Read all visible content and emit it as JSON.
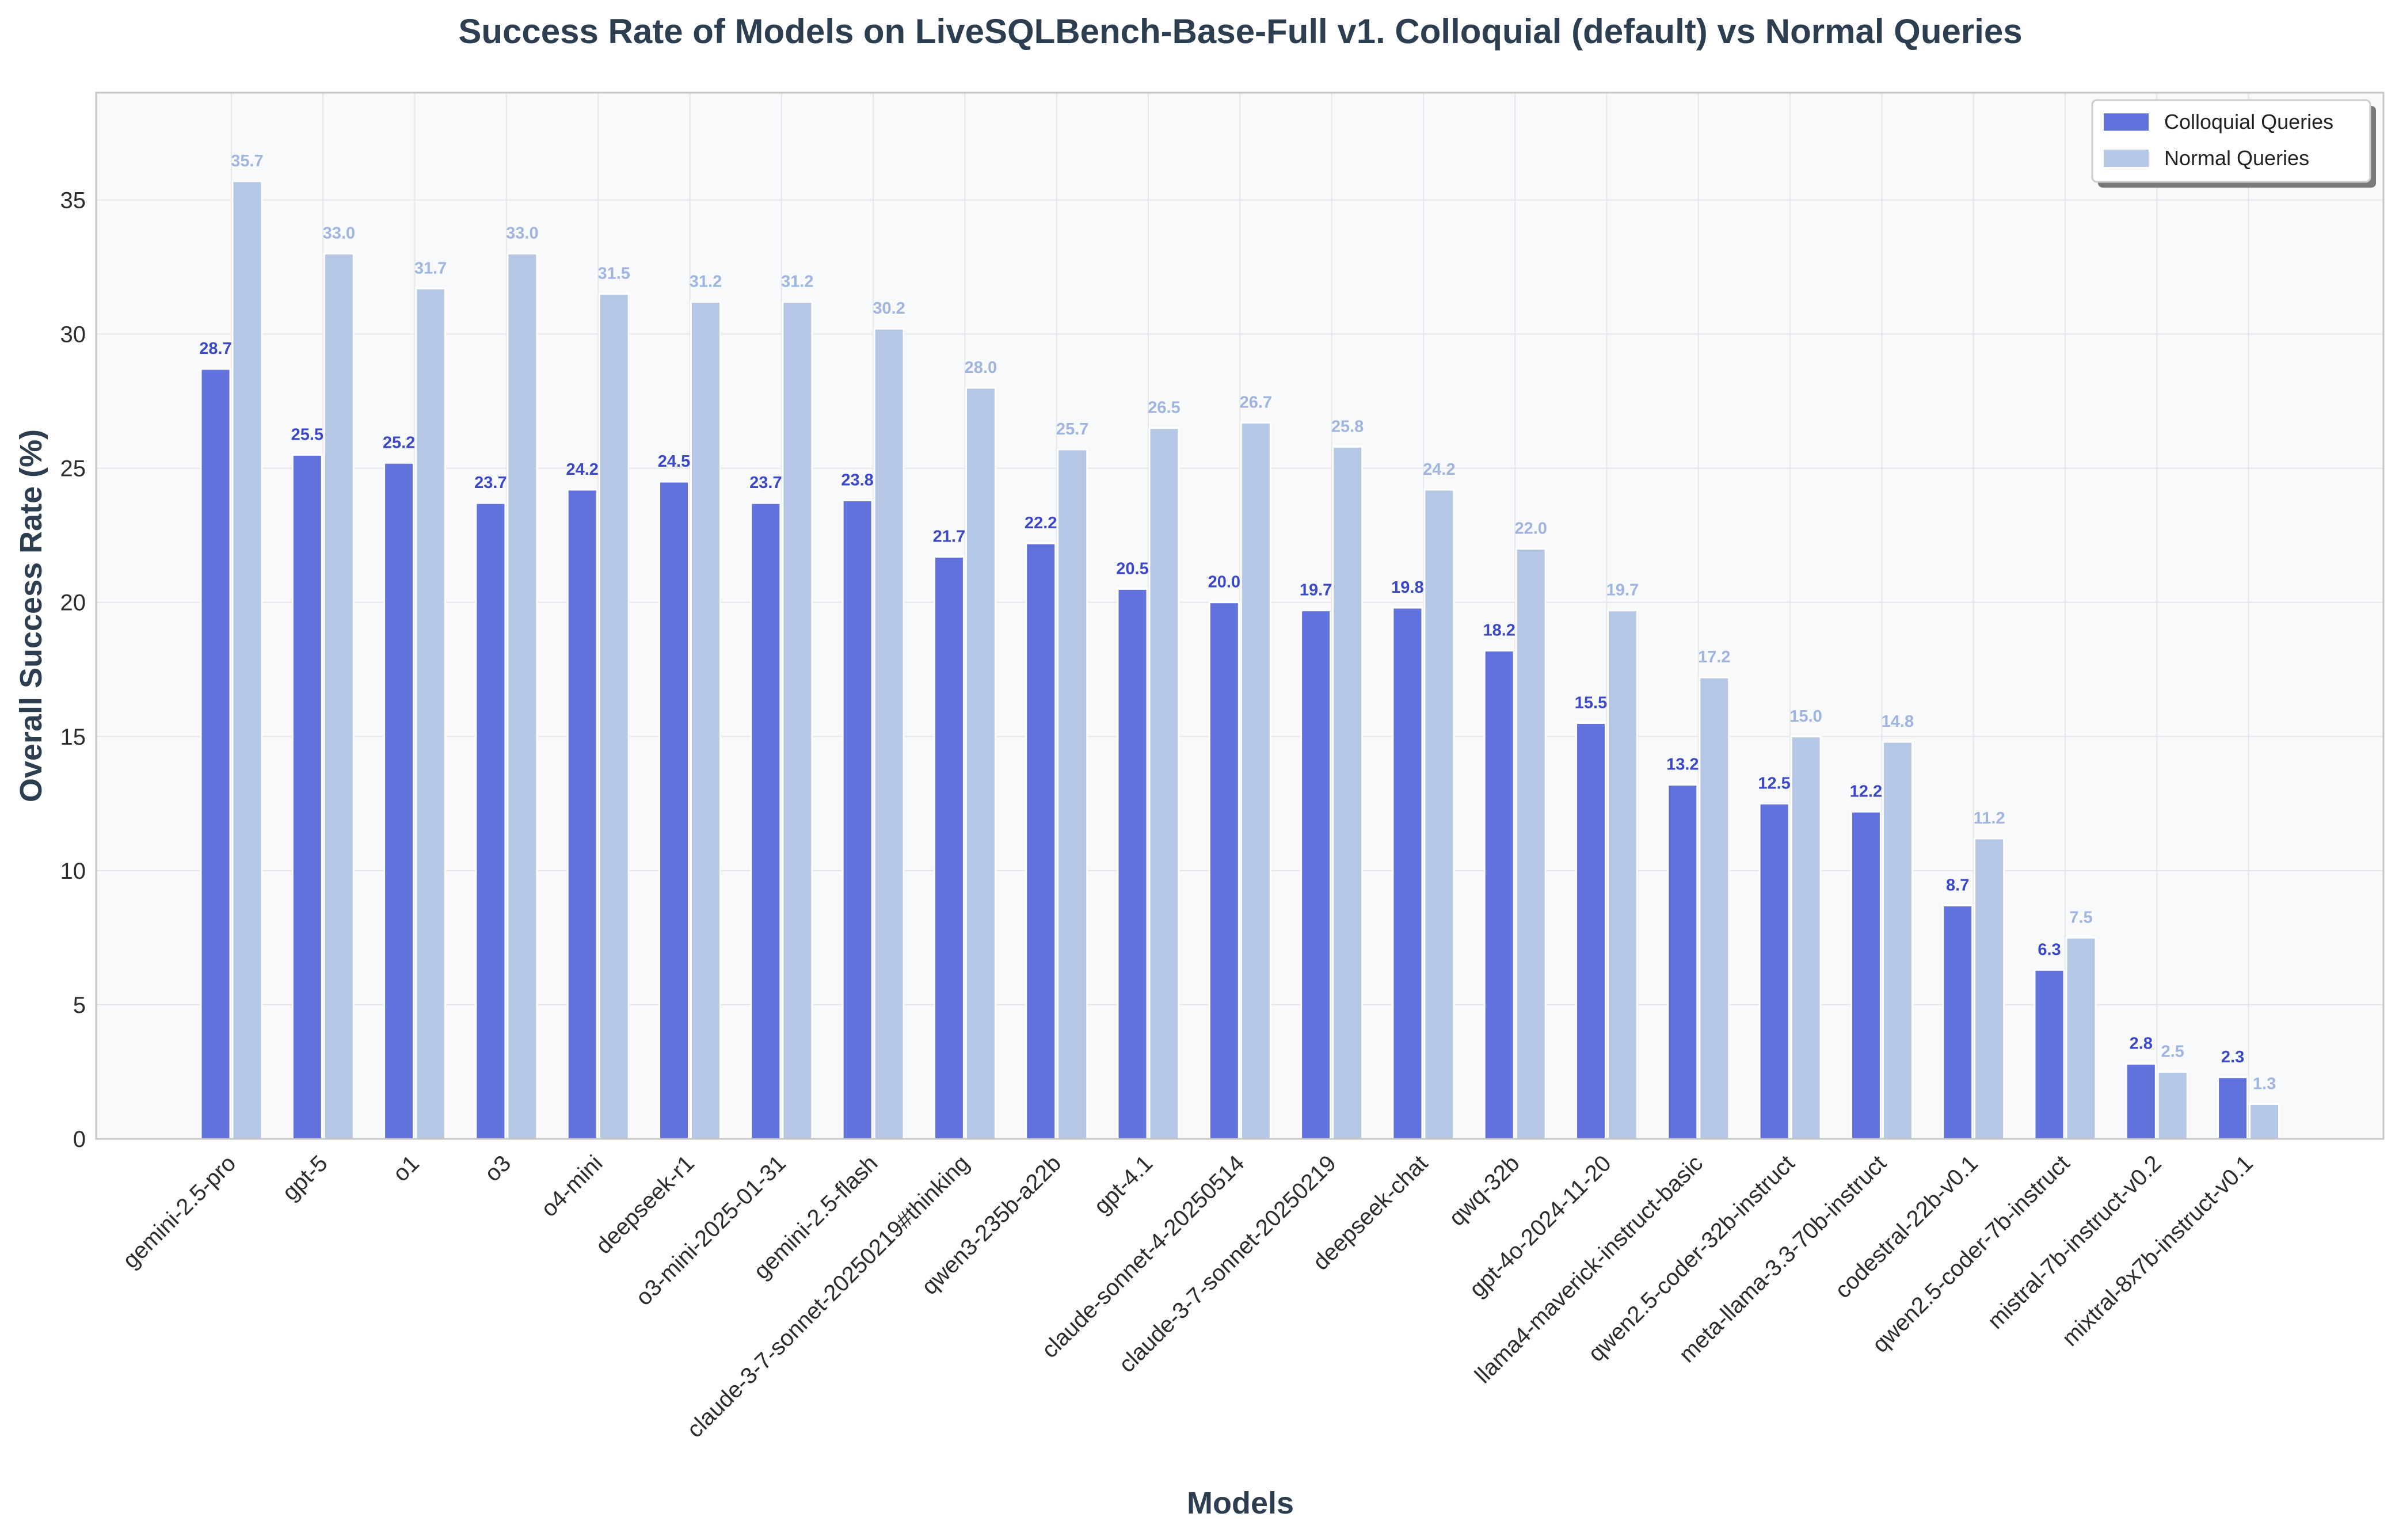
{
  "chart_data": {
    "type": "bar",
    "title": "Success Rate of Models on LiveSQLBench-Base-Full v1. Colloquial (default) vs Normal Queries",
    "xlabel": "Models",
    "ylabel": "Overall Success Rate (%)",
    "ylim": [
      0,
      39
    ],
    "yticks": [
      0,
      5,
      10,
      15,
      20,
      25,
      30,
      35
    ],
    "grid": true,
    "legend_position": "top-right",
    "categories": [
      "gemini-2.5-pro",
      "gpt-5",
      "o1",
      "o3",
      "o4-mini",
      "deepseek-r1",
      "o3-mini-2025-01-31",
      "gemini-2.5-flash",
      "claude-3-7-sonnet-20250219#thinking",
      "qwen3-235b-a22b",
      "gpt-4.1",
      "claude-sonnet-4-20250514",
      "claude-3-7-sonnet-20250219",
      "deepseek-chat",
      "qwq-32b",
      "gpt-4o-2024-11-20",
      "llama4-maverick-instruct-basic",
      "qwen2.5-coder-32b-instruct",
      "meta-llama-3.3-70b-instruct",
      "codestral-22b-v0.1",
      "qwen2.5-coder-7b-instruct",
      "mistral-7b-instruct-v0.2",
      "mixtral-8x7b-instruct-v0.1"
    ],
    "series": [
      {
        "name": "Colloquial Queries",
        "color": "#6272dd",
        "label_color": "#3a48c8",
        "values": [
          28.7,
          25.5,
          25.2,
          23.7,
          24.2,
          24.5,
          23.7,
          23.8,
          21.7,
          22.2,
          20.5,
          20.0,
          19.7,
          19.8,
          18.2,
          15.5,
          13.2,
          12.5,
          12.2,
          8.7,
          6.3,
          2.8,
          2.3
        ]
      },
      {
        "name": "Normal Queries",
        "color": "#b6c7e6",
        "label_color": "#9fb5e0",
        "values": [
          35.7,
          33.0,
          31.7,
          33.0,
          31.5,
          31.2,
          31.2,
          30.2,
          28.0,
          25.7,
          26.5,
          26.7,
          25.8,
          24.2,
          22.0,
          19.7,
          17.2,
          15.0,
          14.8,
          11.2,
          7.5,
          2.5,
          1.3
        ]
      }
    ]
  }
}
